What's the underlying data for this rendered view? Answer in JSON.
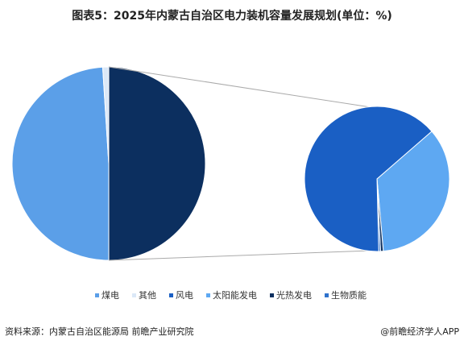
{
  "chart_data": {
    "type": "pie-of-pie",
    "title": "图表5：2025年内蒙古自治区电力装机容量发展规划(单位：%)",
    "categories": [
      "煤电",
      "其他",
      "风电",
      "太阳能发电",
      "光热发电",
      "生物质能"
    ],
    "values": [
      49,
      1,
      32,
      17.5,
      0.3,
      0.2
    ],
    "colors": [
      "#5b9fe8",
      "#dbe8f7",
      "#1a5fc4",
      "#5ea8f2",
      "#0c2f5f",
      "#2f72cc"
    ],
    "legend": "bottom"
  },
  "footer": {
    "source": "资料来源：内蒙古自治区能源局 前瞻产业研究院",
    "brand": "@前瞻经济学人APP"
  }
}
